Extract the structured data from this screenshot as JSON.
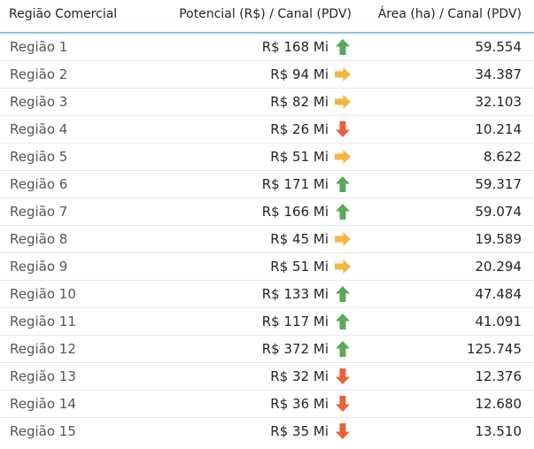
{
  "table": {
    "columns": {
      "region": "Região Comercial",
      "potential": "Potencial (R$) / Canal (PDV)",
      "area": "Área (ha) / Canal (PDV)"
    },
    "status_colors": {
      "up": "#5ba85a",
      "neutral": "#f4b63f",
      "down": "#e8633a"
    },
    "rows": [
      {
        "region": "Região 1",
        "potential": "R$ 168 Mi",
        "trend": "up",
        "trend_icon": "arrow-up-icon",
        "area": "59.554"
      },
      {
        "region": "Região 2",
        "potential": "R$ 94 Mi",
        "trend": "neutral",
        "trend_icon": "arrow-right-icon",
        "area": "34.387"
      },
      {
        "region": "Região 3",
        "potential": "R$ 82 Mi",
        "trend": "neutral",
        "trend_icon": "arrow-right-icon",
        "area": "32.103"
      },
      {
        "region": "Região 4",
        "potential": "R$ 26 Mi",
        "trend": "down",
        "trend_icon": "arrow-down-icon",
        "area": "10.214"
      },
      {
        "region": "Região 5",
        "potential": "R$ 51 Mi",
        "trend": "neutral",
        "trend_icon": "arrow-right-icon",
        "area": "8.622"
      },
      {
        "region": "Região 6",
        "potential": "R$ 171 Mi",
        "trend": "up",
        "trend_icon": "arrow-up-icon",
        "area": "59.317"
      },
      {
        "region": "Região 7",
        "potential": "R$ 166 Mi",
        "trend": "up",
        "trend_icon": "arrow-up-icon",
        "area": "59.074"
      },
      {
        "region": "Região 8",
        "potential": "R$ 45 Mi",
        "trend": "neutral",
        "trend_icon": "arrow-right-icon",
        "area": "19.589"
      },
      {
        "region": "Região 9",
        "potential": "R$ 51 Mi",
        "trend": "neutral",
        "trend_icon": "arrow-right-icon",
        "area": "20.294"
      },
      {
        "region": "Região 10",
        "potential": "R$ 133 Mi",
        "trend": "up",
        "trend_icon": "arrow-up-icon",
        "area": "47.484"
      },
      {
        "region": "Região 11",
        "potential": "R$ 117 Mi",
        "trend": "up",
        "trend_icon": "arrow-up-icon",
        "area": "41.091"
      },
      {
        "region": "Região 12",
        "potential": "R$ 372 Mi",
        "trend": "up",
        "trend_icon": "arrow-up-icon",
        "area": "125.745"
      },
      {
        "region": "Região 13",
        "potential": "R$ 32 Mi",
        "trend": "down",
        "trend_icon": "arrow-down-icon",
        "area": "12.376"
      },
      {
        "region": "Região 14",
        "potential": "R$ 36 Mi",
        "trend": "down",
        "trend_icon": "arrow-down-icon",
        "area": "12.680"
      },
      {
        "region": "Região 15",
        "potential": "R$ 35 Mi",
        "trend": "down",
        "trend_icon": "arrow-down-icon",
        "area": "13.510"
      }
    ]
  }
}
